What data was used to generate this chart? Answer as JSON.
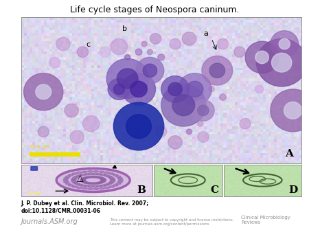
{
  "title": "Life cycle stages of Neospora caninum.",
  "title_fontsize": 9,
  "bg_color": "#ffffff",
  "footer_citation": "J. P. Dubey et al. Clin. Microbiol. Rev. 2007;\ndoi:10.1128/CMR.00031-06",
  "footer_left": "Journals.ASM.org",
  "footer_center": "This content may be subject to copyright and license restrictions.\nLearn more at journals.asm.org/content/permissions",
  "footer_right": "Clinical Microbiology\nReviews",
  "panel_A_bg": "#d4cce8",
  "panel_B_bg_center": "#c8b8d8",
  "panel_B_bg_edge": "#e0d0e8",
  "panel_C_bg": "#b8dca8",
  "panel_D_bg": "#b8dca8",
  "scale_bar_color": "#e8e000",
  "scale_bar_text": "20.0 μm",
  "panel_B_scalebar": "10 μm",
  "cell_large_purple": "#7030a0",
  "cell_dark_purple": "#4020a0",
  "cell_medium_purple": "#9050b0",
  "cell_light_purple": "#c090d0",
  "cell_pink": "#c080c0",
  "cell_dark_blue": "#1020a0",
  "cell_magenta": "#a030a0",
  "bg_lavender": "#d8d4ec",
  "cyst_wall_color": "#a060b0",
  "cyst_fill_color": "#d0b0d8",
  "bradyzoite_color": "#9060a0",
  "oocyst_edge_green": "#406030",
  "oocyst_fill_green": "#c8e8b8",
  "arrow_color": "#000000"
}
